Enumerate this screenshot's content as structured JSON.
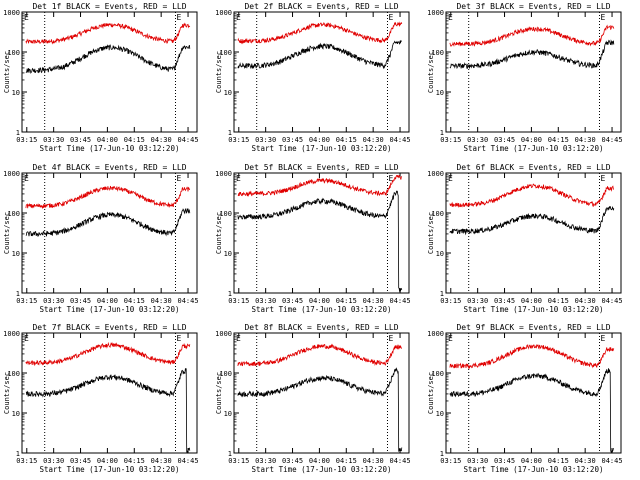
{
  "chart_data": {
    "type": "line",
    "yscale": "log",
    "ylim": [
      1,
      1000
    ],
    "ytick_labels": [
      "1",
      "10",
      "100",
      "1000"
    ],
    "xtick_labels": [
      "03:15",
      "03:30",
      "03:45",
      "04:00",
      "04:15",
      "04:30",
      "04:45"
    ],
    "xlabel": "Start Time (17-Jun-10 03:12:20)",
    "ylabel": "Counts/sec",
    "colors": {
      "events": "#000000",
      "lld": "#e00000",
      "axes": "#000000"
    },
    "vertical_markers_x": [
      "03:25",
      "04:38"
    ],
    "panels": [
      {
        "title": "Det 1f BLACK = Events, RED = LLD",
        "events_peak": 130,
        "lld_peak": 480,
        "events_base": 35,
        "lld_base": 180
      },
      {
        "title": "Det 2f BLACK = Events, RED = LLD",
        "events_peak": 140,
        "lld_peak": 480,
        "events_base": 45,
        "lld_base": 190
      },
      {
        "title": "Det 3f BLACK = Events, RED = LLD",
        "events_peak": 100,
        "lld_peak": 380,
        "events_base": 45,
        "lld_base": 160
      },
      {
        "title": "Det 4f BLACK = Events, RED = LLD",
        "events_peak": 90,
        "lld_peak": 420,
        "events_base": 30,
        "lld_base": 150
      },
      {
        "title": "Det 5f BLACK = Events, RED = LLD",
        "events_peak": 200,
        "lld_peak": 650,
        "events_base": 80,
        "lld_base": 300
      },
      {
        "title": "Det 6f BLACK = Events, RED = LLD",
        "events_peak": 85,
        "lld_peak": 480,
        "events_base": 35,
        "lld_base": 160
      },
      {
        "title": "Det 7f BLACK = Events, RED = LLD",
        "events_peak": 80,
        "lld_peak": 500,
        "events_base": 30,
        "lld_base": 180
      },
      {
        "title": "Det 8f BLACK = Events, RED = LLD",
        "events_peak": 75,
        "lld_peak": 470,
        "events_base": 30,
        "lld_base": 170
      },
      {
        "title": "Det 9f BLACK = Events, RED = LLD",
        "events_peak": 85,
        "lld_peak": 470,
        "events_base": 30,
        "lld_base": 150
      }
    ]
  }
}
